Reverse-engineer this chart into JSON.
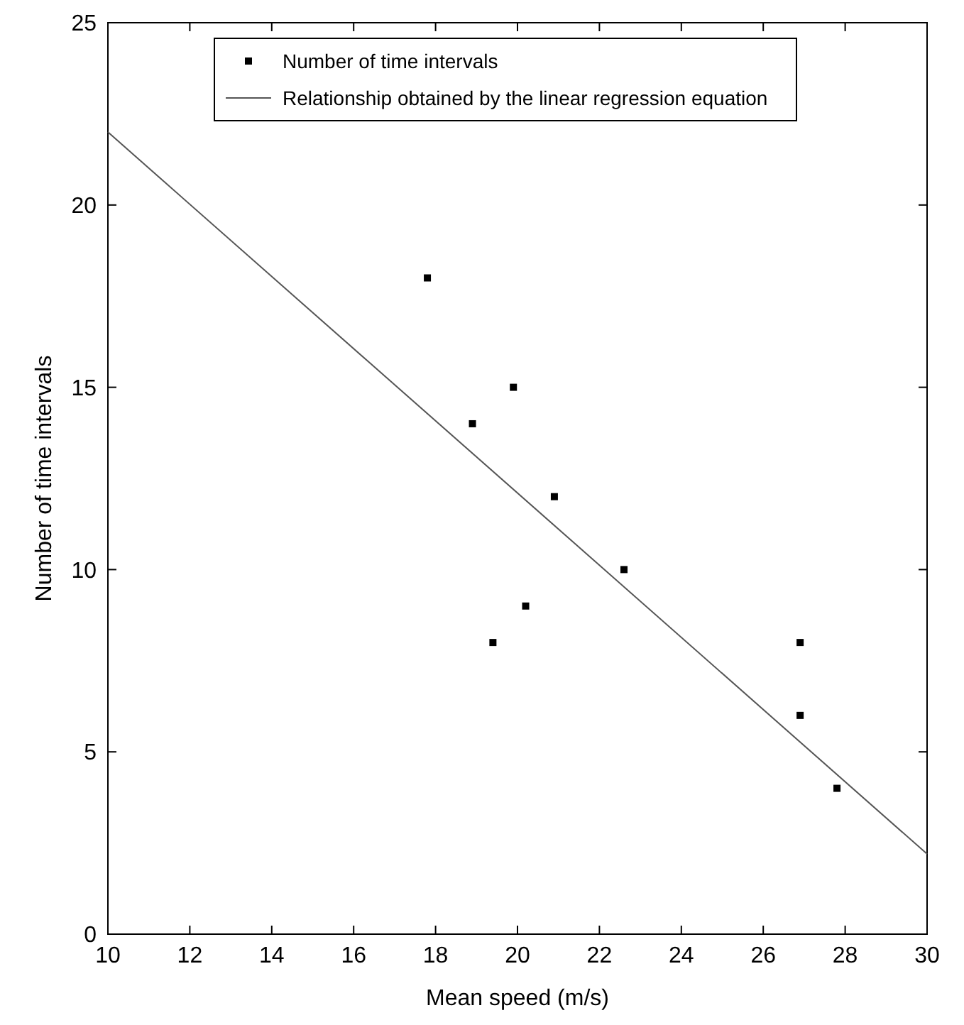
{
  "chart_data": {
    "type": "scatter",
    "xlabel": "Mean speed (m/s)",
    "ylabel": "Number of time intervals",
    "xlim": [
      10,
      30
    ],
    "ylim": [
      0,
      25
    ],
    "xticks": [
      10,
      12,
      14,
      16,
      18,
      20,
      22,
      24,
      26,
      28,
      30
    ],
    "yticks": [
      0,
      5,
      10,
      15,
      20,
      25
    ],
    "grid": false,
    "legend": "top",
    "series": [
      {
        "name": "Number of time intervals",
        "color": "#000000",
        "marker": "square",
        "x": [
          17.8,
          19.9,
          18.9,
          20.9,
          22.6,
          20.2,
          19.4,
          26.9,
          26.9,
          27.8
        ],
        "values": [
          18,
          15,
          14,
          12,
          10,
          9,
          8,
          8,
          6,
          4
        ]
      },
      {
        "name": "Relationship obtained by the linear regression equation",
        "type": "line",
        "color": "#555555",
        "marker": "none",
        "line_style": "solid",
        "x": [
          10,
          30
        ],
        "values": [
          22,
          2.2
        ]
      }
    ]
  }
}
